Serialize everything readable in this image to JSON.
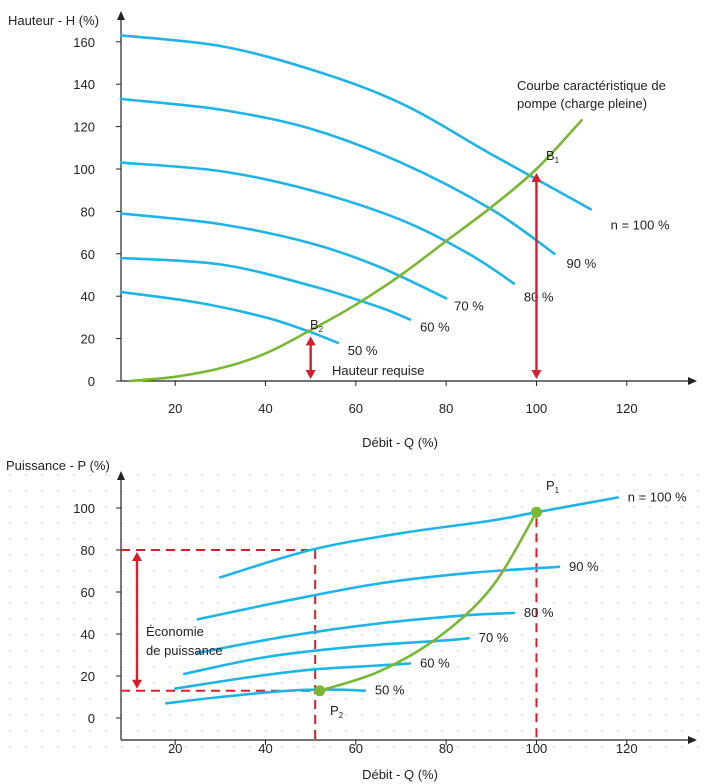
{
  "colors": {
    "curve": "#1eb4e6",
    "pump": "#7ab834",
    "arrow": "#d4202c",
    "dashed": "#d4202c",
    "axis": "#222222"
  },
  "chart_data": [
    {
      "type": "line",
      "ylabel": "Hauteur - H (%)",
      "xlabel": "Débit - Q (%)",
      "xlim": [
        8,
        134
      ],
      "ylim": [
        0,
        172
      ],
      "x_ticks": [
        "20",
        "40",
        "60",
        "80",
        "100",
        "120"
      ],
      "y_ticks": [
        "0",
        "20",
        "40",
        "60",
        "80",
        "100",
        "120",
        "140",
        "160"
      ],
      "series": [
        {
          "name": "n = 100 %",
          "x": [
            8,
            30,
            50,
            70,
            90,
            112
          ],
          "y": [
            163,
            158,
            147,
            131,
            107,
            81
          ]
        },
        {
          "name": "90 %",
          "x": [
            8,
            30,
            50,
            70,
            90,
            104
          ],
          "y": [
            133,
            128,
            119,
            103,
            81,
            60
          ]
        },
        {
          "name": "80 %",
          "x": [
            8,
            30,
            50,
            70,
            85,
            95
          ],
          "y": [
            103,
            99,
            90,
            76,
            60,
            46
          ]
        },
        {
          "name": "70 %",
          "x": [
            8,
            30,
            50,
            65,
            80
          ],
          "y": [
            79,
            74,
            65,
            54,
            39
          ]
        },
        {
          "name": "60 %",
          "x": [
            8,
            30,
            50,
            65,
            72
          ],
          "y": [
            58,
            55,
            45,
            35,
            29
          ]
        },
        {
          "name": "50 %",
          "x": [
            8,
            25,
            40,
            50,
            56
          ],
          "y": [
            42,
            37,
            30,
            23,
            18
          ]
        },
        {
          "name": "Courbe caractéristique de pompe (charge pleine)",
          "x": [
            10,
            20,
            30,
            40,
            50,
            60,
            70,
            80,
            90,
            100,
            110
          ],
          "y": [
            0,
            2,
            6,
            13,
            24,
            36,
            50,
            66,
            82,
            100,
            123
          ]
        }
      ],
      "annotations": {
        "b1": "B",
        "b1_sub": "1",
        "b2": "B",
        "b2_sub": "2",
        "required_head": "Hauteur requise",
        "pump_curve_line1": "Courbe caractéristique de",
        "pump_curve_line2": "pompe (charge pleine)"
      },
      "points": {
        "b1": [
          100,
          100
        ],
        "b2": [
          50,
          22
        ]
      }
    },
    {
      "type": "line",
      "ylabel": "Puissance - P (%)",
      "xlabel": "Débit - Q (%)",
      "xlim": [
        8,
        134
      ],
      "ylim": [
        0,
        120
      ],
      "x_ticks": [
        "20",
        "40",
        "60",
        "80",
        "100",
        "120"
      ],
      "y_ticks": [
        "0",
        "20",
        "40",
        "60",
        "80",
        "100"
      ],
      "series": [
        {
          "name": "n = 100 %",
          "x": [
            30,
            50,
            70,
            90,
            100,
            118
          ],
          "y": [
            67,
            80,
            88,
            94,
            98,
            105
          ]
        },
        {
          "name": "90 %",
          "x": [
            25,
            45,
            65,
            85,
            105
          ],
          "y": [
            47,
            56,
            64,
            69,
            72
          ]
        },
        {
          "name": "80 %",
          "x": [
            25,
            45,
            65,
            85,
            95
          ],
          "y": [
            31,
            39,
            45,
            49,
            50
          ]
        },
        {
          "name": "70 %",
          "x": [
            22,
            40,
            60,
            80,
            85
          ],
          "y": [
            21,
            29,
            34,
            37,
            38
          ]
        },
        {
          "name": "60 %",
          "x": [
            20,
            35,
            50,
            65,
            72
          ],
          "y": [
            14,
            19,
            23,
            25,
            26
          ]
        },
        {
          "name": "50 %",
          "x": [
            18,
            30,
            45,
            55,
            62
          ],
          "y": [
            7,
            10,
            13,
            13.5,
            13
          ]
        },
        {
          "name": "pump",
          "x": [
            52,
            65,
            78,
            90,
            100
          ],
          "y": [
            13,
            22,
            38,
            62,
            98
          ]
        }
      ],
      "annotations": {
        "p1": "P",
        "p1_sub": "1",
        "p2": "P",
        "p2_sub": "2",
        "saving_line1": "Économie",
        "saving_line2": "de puissance"
      },
      "points": {
        "p1": [
          100,
          98
        ],
        "p2": [
          52,
          13
        ]
      },
      "dashed_levels": {
        "upper": 80,
        "lower": 13,
        "x": 51
      }
    }
  ]
}
